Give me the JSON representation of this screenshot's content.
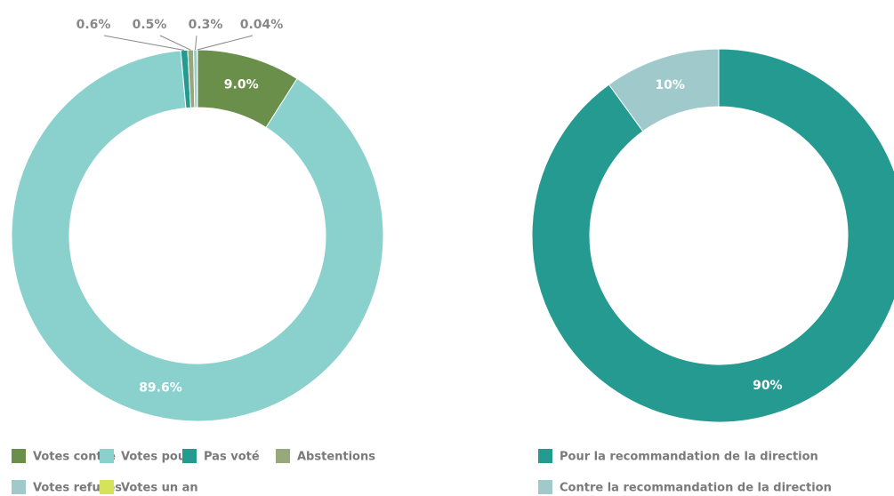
{
  "chart_data": [
    {
      "type": "donut",
      "categories": [
        "Votes contre",
        "Votes pour",
        "Pas voté",
        "Abstentions",
        "Votes refusés",
        "Votes un an"
      ],
      "values": [
        9.0,
        89.6,
        0.6,
        0.5,
        0.3,
        0.04
      ],
      "value_labels": [
        "9.0%",
        "89.6%",
        "0.6%",
        "0.5%",
        "0.3%",
        "0.04%"
      ],
      "colors": [
        "#6a8f4a",
        "#8ad1cd",
        "#259a91",
        "#98a77c",
        "#9fc9cb",
        "#d6e35a"
      ]
    },
    {
      "type": "donut",
      "categories": [
        "Pour la recommandation de la direction",
        "Contre la recommandation de la direction"
      ],
      "values": [
        90,
        10
      ],
      "value_labels": [
        "90%",
        "10%"
      ],
      "colors": [
        "#259a91",
        "#9fc9cb"
      ]
    }
  ]
}
